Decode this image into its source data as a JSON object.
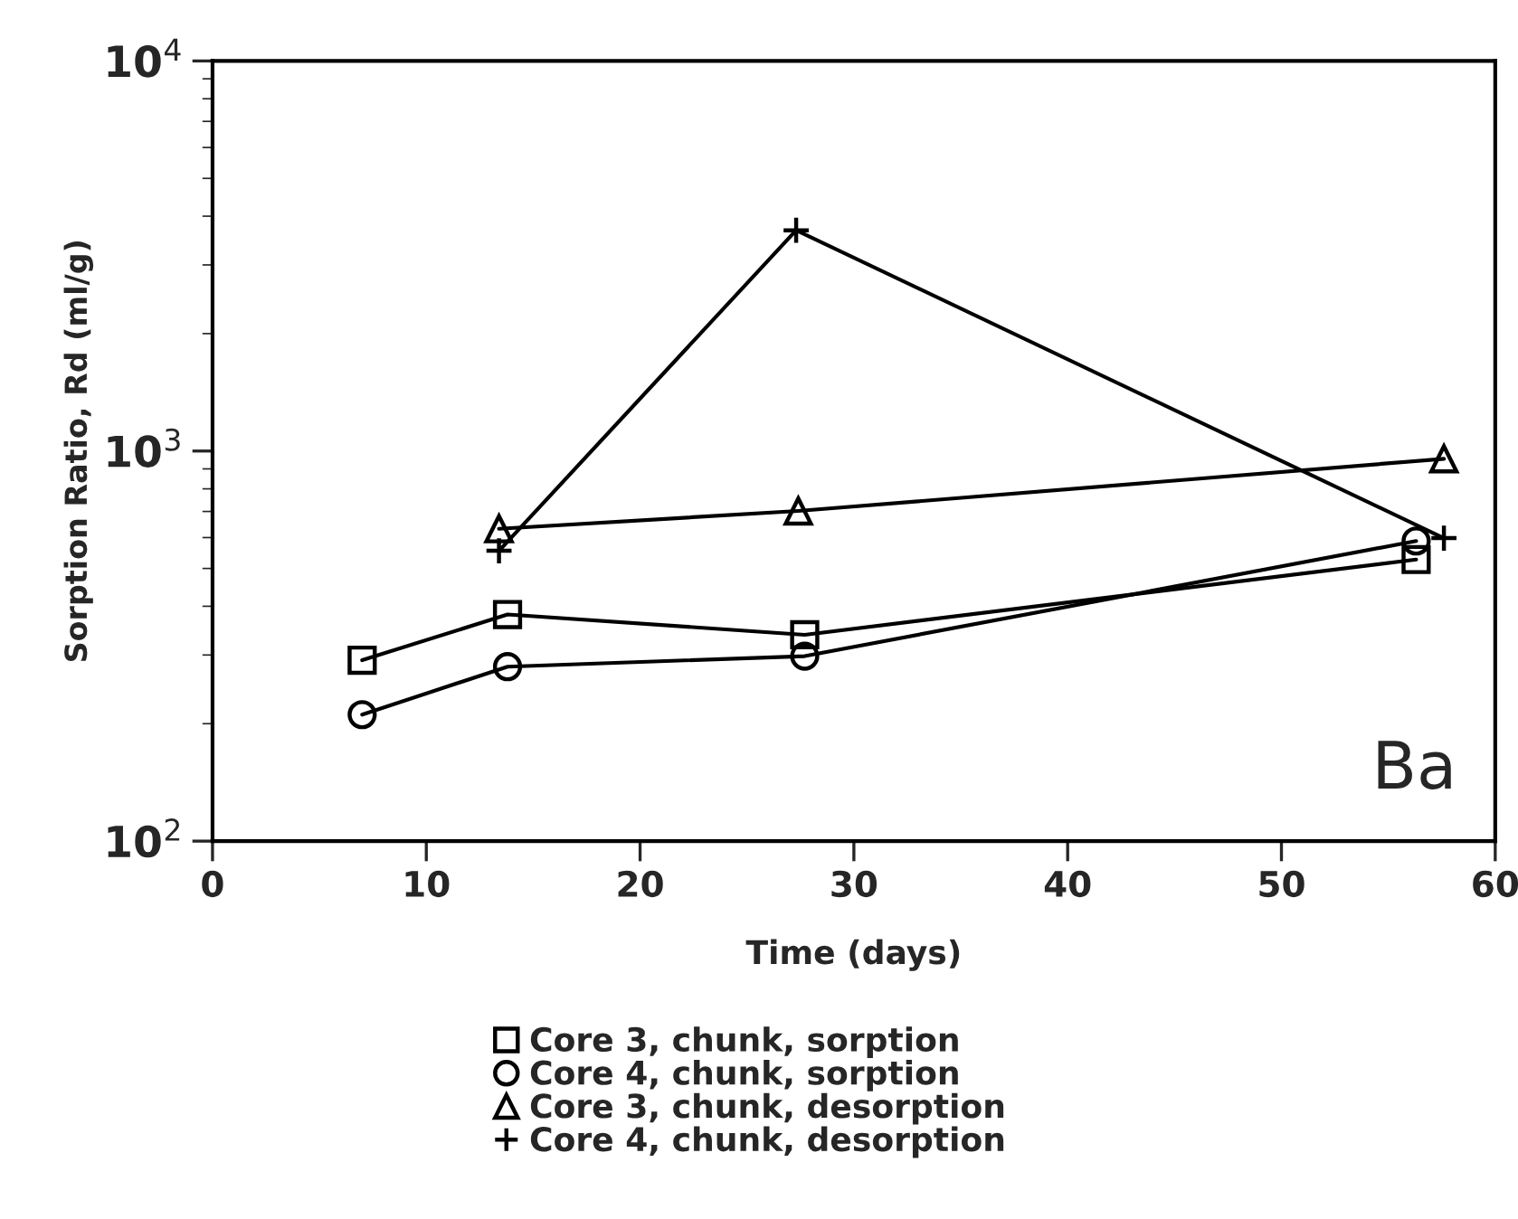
{
  "chart_data": {
    "type": "line",
    "xlabel": "Time (days)",
    "ylabel": "Sorption Ratio, Rd (ml/g)",
    "log": "y",
    "xlim": [
      0,
      60
    ],
    "xticks": [
      0,
      10,
      20,
      30,
      40,
      50,
      60
    ],
    "ylim": [
      100,
      10000
    ],
    "yticks": [
      {
        "value": 100,
        "label": "10$^{2}$"
      },
      {
        "value": 1000,
        "label": "10$^{3}$"
      },
      {
        "value": 10000,
        "label": "10$^{4}$"
      }
    ],
    "grid": false,
    "legend": "bottom",
    "annotations": [
      "Ba"
    ],
    "series": [
      {
        "name": "Core 3, chunk, sorption",
        "color": "#000000",
        "marker": "square",
        "x": [
          7,
          13.8,
          27.7,
          56.3
        ],
        "values": [
          291,
          381,
          338,
          527
        ]
      },
      {
        "name": "Core 4, chunk, sorption",
        "color": "#000000",
        "marker": "circle",
        "x": [
          7,
          13.8,
          27.7,
          56.3
        ],
        "values": [
          211,
          280,
          298,
          588
        ]
      },
      {
        "name": "Core 3, chunk, desorption",
        "color": "#000000",
        "marker": "triangle",
        "x": [
          13.4,
          27.4,
          57.6
        ],
        "values": [
          632,
          702,
          955
        ]
      },
      {
        "name": "Core 4, chunk, desorption",
        "color": "#000000",
        "marker": "cross",
        "x": [
          13.4,
          27.3,
          57.6
        ],
        "values": [
          555,
          3680,
          598
        ]
      }
    ]
  }
}
